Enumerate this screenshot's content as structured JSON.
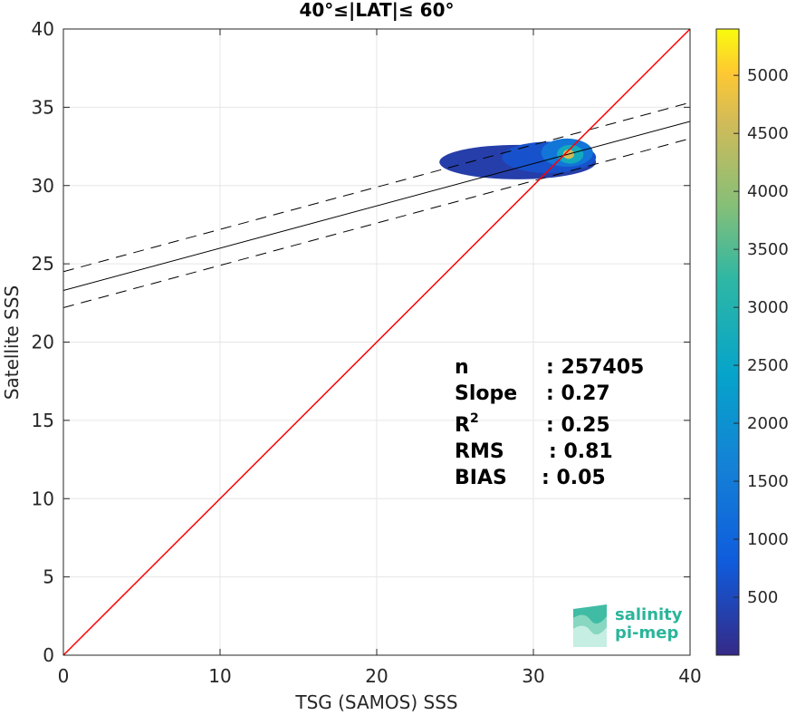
{
  "chart_data": {
    "type": "heatmap",
    "title": "40°≤|LAT|≤ 60°",
    "xlabel": "TSG (SAMOS) SSS",
    "ylabel": "Satellite SSS",
    "xlim": [
      0,
      40
    ],
    "ylim": [
      0,
      40
    ],
    "xticks": [
      "0",
      "10",
      "20",
      "30",
      "40"
    ],
    "yticks": [
      "0",
      "5",
      "10",
      "15",
      "20",
      "25",
      "30",
      "35",
      "40"
    ],
    "grid": true,
    "colorbar": {
      "min": 0,
      "max": 5400,
      "ticks": [
        "500",
        "1000",
        "1500",
        "2000",
        "2500",
        "3000",
        "3500",
        "4000",
        "4500",
        "5000"
      ],
      "colormap": "parula"
    },
    "density_clusters": [
      {
        "x": [
          24.0,
          34.0
        ],
        "y": [
          30.4,
          32.6
        ],
        "level": 0.06
      },
      {
        "x": [
          28.0,
          34.0
        ],
        "y": [
          30.8,
          32.8
        ],
        "level": 0.12
      },
      {
        "x": [
          30.5,
          33.8
        ],
        "y": [
          31.2,
          33.0
        ],
        "level": 0.25
      },
      {
        "x": [
          31.5,
          33.2
        ],
        "y": [
          31.4,
          32.6
        ],
        "level": 0.5
      },
      {
        "x": [
          31.9,
          32.6
        ],
        "y": [
          31.7,
          32.3
        ],
        "level": 0.85
      }
    ],
    "lines": {
      "one_to_one": {
        "slope": 1,
        "intercept": 0,
        "color": "#ff0000"
      },
      "fit": {
        "slope": 0.27,
        "intercept": 23.3,
        "color": "#000000"
      },
      "fit_upper": {
        "slope": 0.27,
        "intercept": 24.5,
        "style": "dashed"
      },
      "fit_lower": {
        "slope": 0.27,
        "intercept": 22.2,
        "style": "dashed"
      }
    },
    "stats": [
      {
        "label": "n",
        "value": ": 257405"
      },
      {
        "label": "Slope",
        "value": ": 0.27"
      },
      {
        "label": "R",
        "sup": "2",
        "value": ": 0.25"
      },
      {
        "label": "RMS",
        "value": ": 0.81"
      },
      {
        "label": "BIAS",
        "value": ": 0.05"
      }
    ]
  },
  "logo": {
    "line1": "salinity",
    "line2": "pi-mep"
  }
}
